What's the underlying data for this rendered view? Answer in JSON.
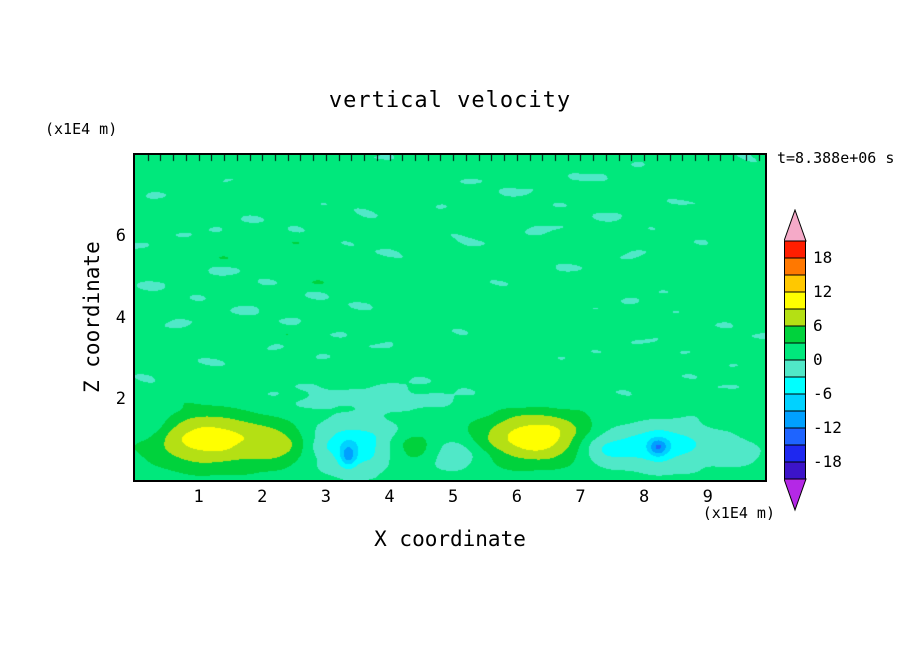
{
  "title": "vertical velocity",
  "annotations": {
    "time_label": "t=8.388e+06 s",
    "y_axis_unit": "(x1E4 m)",
    "x_axis_unit": "(x1E4 m)"
  },
  "axes": {
    "x": {
      "label": "X coordinate",
      "ticks": [
        1,
        2,
        3,
        4,
        5,
        6,
        7,
        8,
        9
      ]
    },
    "y": {
      "label": "Z coordinate",
      "ticks": [
        2,
        4,
        6
      ]
    }
  },
  "chart_data": {
    "type": "heatmap",
    "title": "vertical velocity",
    "xlabel": "X coordinate (x1E4 m)",
    "ylabel": "Z coordinate (x1E4 m)",
    "time_annotation": "t=8.388e+06 s",
    "xlim": [
      0,
      9.9
    ],
    "ylim": [
      0,
      8
    ],
    "contour_interval": 3,
    "levels": [
      -21,
      -18,
      -15,
      -12,
      -9,
      -6,
      -3,
      0,
      3,
      6,
      9,
      12,
      15,
      18,
      21
    ],
    "palette": {
      "box_colors_ascending": [
        "#3c14c8",
        "#1e28f0",
        "#1e64ff",
        "#00a0ff",
        "#00d2ff",
        "#00ffff",
        "#50e8c8",
        "#00e87c",
        "#00d23c",
        "#b4e014",
        "#ffff00",
        "#ffc800",
        "#ff7800",
        "#ff1e00"
      ],
      "under_arrow_color": "#b428e6",
      "over_arrow_color": "#f5aac8"
    },
    "colorbar_ticks": [
      {
        "label": "18",
        "value": 18
      },
      {
        "label": "12",
        "value": 12
      },
      {
        "label": "6",
        "value": 6
      },
      {
        "label": "0",
        "value": 0
      },
      {
        "label": "-6",
        "value": -6
      },
      {
        "label": "-12",
        "value": -12
      },
      {
        "label": "-18",
        "value": -18
      }
    ],
    "background_value": 1.1,
    "wave_field": {
      "amplitude_upper": 2.4,
      "amplitude_lower": 0.6,
      "transition_z": [
        1.4,
        2.4
      ],
      "description": "horizontally elongated gravity-wave streaks between 0 and -3 over +0..3 background"
    },
    "features": [
      {
        "label": "updraft-left",
        "x": 1.15,
        "z": 1.0,
        "rx": 0.95,
        "rz": 0.7,
        "amp": 9.5
      },
      {
        "label": "updraft-small-1",
        "x": 2.3,
        "z": 0.85,
        "rx": 0.5,
        "rz": 0.5,
        "amp": 5.5
      },
      {
        "label": "downdraft-1",
        "x": 3.5,
        "z": 0.85,
        "rx": 0.85,
        "rz": 0.6,
        "amp": -6.5
      },
      {
        "label": "downdraft-core-1",
        "x": 3.35,
        "z": 0.6,
        "rx": 0.13,
        "rz": 0.28,
        "amp": -7
      },
      {
        "label": "updraft-small-2",
        "x": 4.35,
        "z": 0.8,
        "rx": 0.5,
        "rz": 0.45,
        "amp": 5.5
      },
      {
        "label": "downdraft-2",
        "x": 5.0,
        "z": 0.65,
        "rx": 0.45,
        "rz": 0.4,
        "amp": -4.5
      },
      {
        "label": "updraft-main",
        "x": 6.3,
        "z": 1.05,
        "rx": 0.9,
        "rz": 0.65,
        "amp": 10
      },
      {
        "label": "downdraft-3",
        "x": 7.35,
        "z": 0.8,
        "rx": 0.45,
        "rz": 0.45,
        "amp": -5
      },
      {
        "label": "downdraft-4",
        "x": 8.3,
        "z": 0.85,
        "rx": 0.75,
        "rz": 0.55,
        "amp": -6
      },
      {
        "label": "downdraft-core-4",
        "x": 8.22,
        "z": 0.8,
        "rx": 0.15,
        "rz": 0.22,
        "amp": -8
      },
      {
        "label": "downdraft-5",
        "x": 9.4,
        "z": 0.7,
        "rx": 0.4,
        "rz": 0.35,
        "amp": -3
      },
      {
        "label": "boundary-band",
        "x": 4.0,
        "z": 2.0,
        "rx": 2.0,
        "rz": 0.3,
        "amp": -2.2
      },
      {
        "label": "edge-patch-left",
        "x": 0.25,
        "z": 1.35,
        "rx": 0.35,
        "rz": 0.4,
        "amp": -3.0
      }
    ]
  }
}
